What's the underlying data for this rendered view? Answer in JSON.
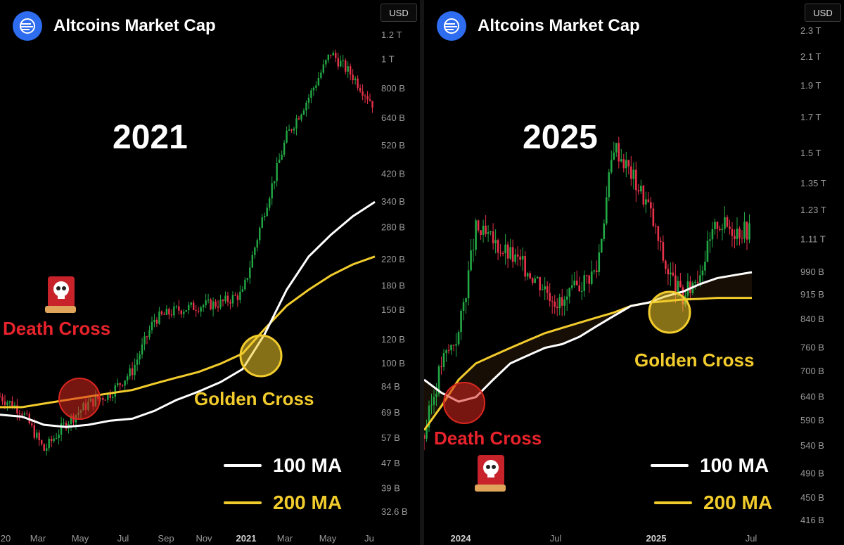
{
  "colors": {
    "up": "#22a845",
    "down": "#e8324a",
    "ma100": "#ffffff",
    "ma200": "#f2cc2c",
    "death": "#d9271f",
    "golden": "#f2cc2c",
    "brand": "#2e6cf0"
  },
  "icons": [
    "altcoins-logo-icon",
    "skull-book-icon"
  ],
  "panels": [
    {
      "header_title": "Altcoins Market Cap",
      "currency": "USD",
      "year_label": "2021",
      "death_cross_label": "Death Cross",
      "golden_cross_label": "Golden Cross",
      "legend_100": "100 MA",
      "legend_200": "200 MA"
    },
    {
      "header_title": "Altcoins Market Cap",
      "currency": "USD",
      "year_label": "2025",
      "death_cross_label": "Death Cross",
      "golden_cross_label": "Golden Cross",
      "legend_100": "100 MA",
      "legend_200": "200 MA"
    }
  ],
  "chart_data": [
    {
      "type": "line",
      "title": "Altcoins Market Cap",
      "scale": "log",
      "y_ticks": [
        "1.2 T",
        "1 T",
        "800 B",
        "640 B",
        "520 B",
        "420 B",
        "340 B",
        "280 B",
        "220 B",
        "180 B",
        "150 B",
        "120 B",
        "100 B",
        "84 B",
        "69 B",
        "57 B",
        "47 B",
        "39 B",
        "32.6 B"
      ],
      "x_ticks": [
        "20",
        "Mar",
        "May",
        "Jul",
        "Sep",
        "Nov",
        "2021",
        "Mar",
        "May",
        "Ju"
      ],
      "x": [
        "2020-01",
        "2020-02",
        "2020-03",
        "2020-04",
        "2020-05",
        "2020-06",
        "2020-07",
        "2020-08",
        "2020-09",
        "2020-10",
        "2020-11",
        "2020-12",
        "2021-01",
        "2021-02",
        "2021-03",
        "2021-04",
        "2021-05",
        "2021-06"
      ],
      "series": [
        {
          "name": "100 MA",
          "values": [
            68,
            67,
            63,
            62,
            63,
            65,
            66,
            70,
            76,
            81,
            87,
            96,
            125,
            175,
            225,
            265,
            305,
            340
          ]
        },
        {
          "name": "200 MA",
          "values": [
            72,
            72,
            74,
            76,
            78,
            80,
            82,
            86,
            90,
            94,
            100,
            108,
            130,
            155,
            175,
            195,
            212,
            225
          ]
        }
      ],
      "price": [
        78,
        70,
        52,
        64,
        74,
        80,
        95,
        140,
        150,
        155,
        158,
        170,
        320,
        560,
        750,
        1050,
        880,
        700
      ],
      "annotations": [
        "Death Cross",
        "Golden Cross"
      ]
    },
    {
      "type": "line",
      "title": "Altcoins Market Cap",
      "scale": "log",
      "y_ticks": [
        "2.3 T",
        "2.1 T",
        "1.9 T",
        "1.7 T",
        "1.5 T",
        "1.35 T",
        "1.23 T",
        "1.11 T",
        "990 B",
        "915 B",
        "840 B",
        "760 B",
        "700 B",
        "640 B",
        "590 B",
        "540 B",
        "490 B",
        "450 B",
        "416 B"
      ],
      "x_ticks": [
        "2024",
        "Jul",
        "2025",
        "Jul"
      ],
      "x": [
        "2023-12",
        "2024-01",
        "2024-02",
        "2024-03",
        "2024-04",
        "2024-05",
        "2024-06",
        "2024-07",
        "2024-08",
        "2024-09",
        "2024-10",
        "2024-11",
        "2024-12",
        "2025-01",
        "2025-02",
        "2025-03",
        "2025-04",
        "2025-05",
        "2025-06",
        "2025-07"
      ],
      "series": [
        {
          "name": "100 MA",
          "values": [
            680,
            650,
            630,
            640,
            680,
            720,
            740,
            760,
            770,
            790,
            820,
            850,
            880,
            890,
            910,
            925,
            950,
            970,
            980,
            990
          ]
        },
        {
          "name": "200 MA",
          "values": [
            570,
            620,
            680,
            720,
            740,
            760,
            780,
            800,
            815,
            830,
            845,
            860,
            880,
            890,
            895,
            900,
            902,
            905,
            905,
            905
          ]
        }
      ],
      "price": [
        560,
        720,
        800,
        1150,
        1100,
        1050,
        1000,
        940,
        880,
        950,
        1000,
        1550,
        1400,
        1250,
        1010,
        900,
        1000,
        1180,
        1150,
        1150
      ],
      "annotations": [
        "Death Cross",
        "Golden Cross"
      ]
    }
  ]
}
